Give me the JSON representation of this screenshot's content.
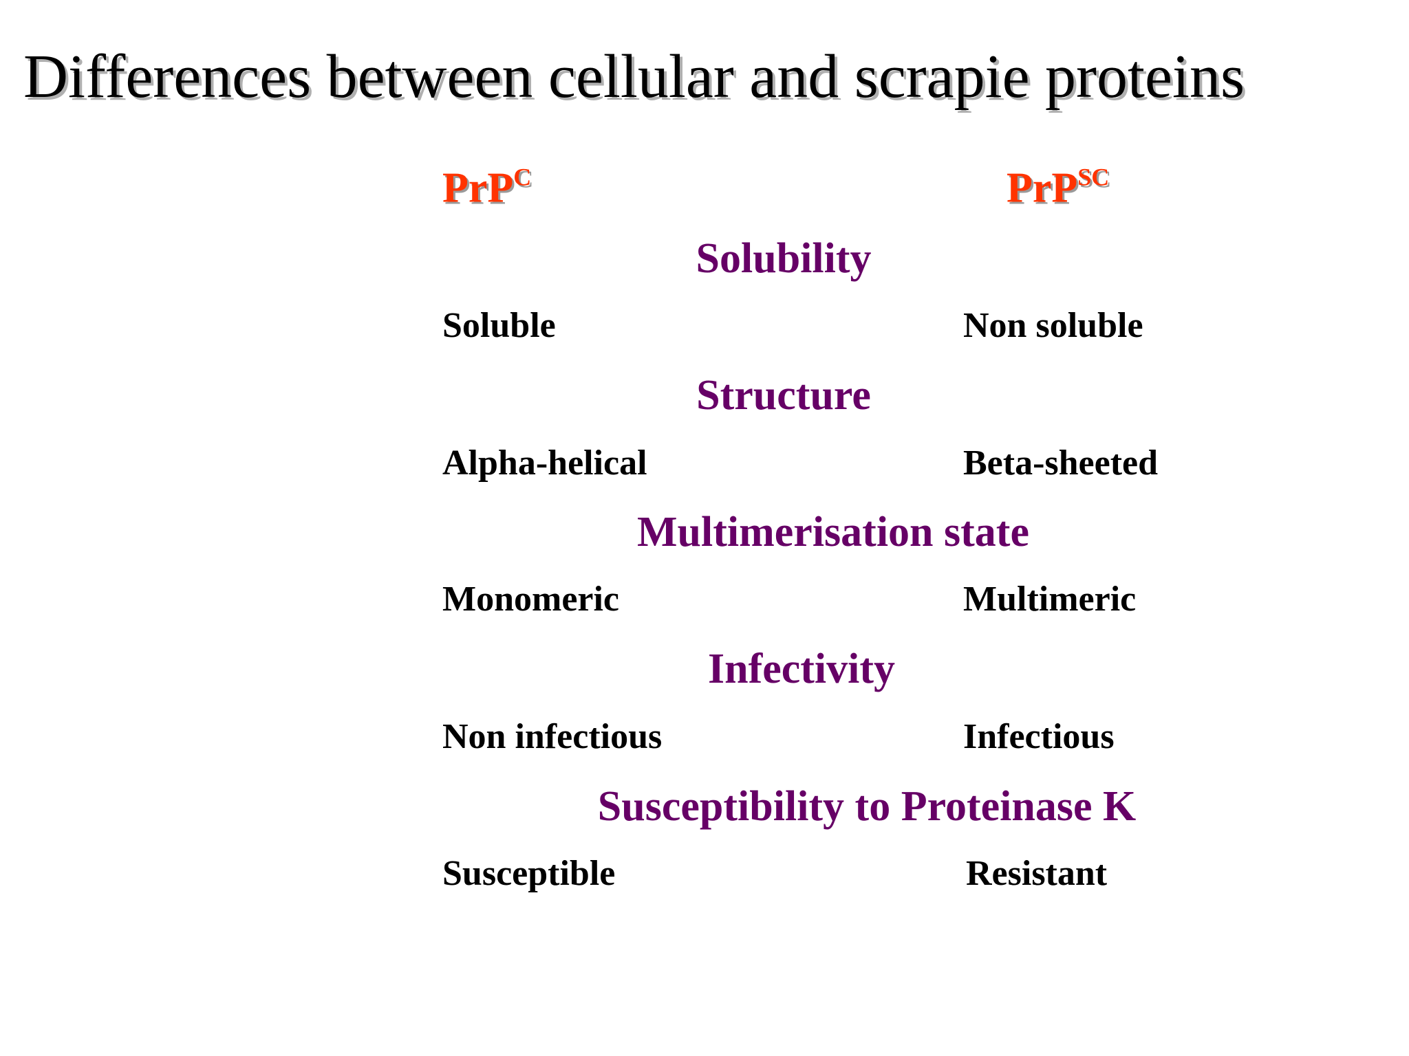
{
  "title": "Differences between cellular and scrapie proteins",
  "columns": [
    {
      "base": "PrP",
      "sup": "C"
    },
    {
      "base": "PrP",
      "sup": "SC"
    }
  ],
  "sections": [
    {
      "heading": "Solubility",
      "left": "Soluble",
      "right": "Non soluble"
    },
    {
      "heading": "Structure",
      "left": "Alpha-helical",
      "right": "Beta-sheeted"
    },
    {
      "heading": "Multimerisation state",
      "left": "Monomeric",
      "right": "Multimeric"
    },
    {
      "heading": "Infectivity",
      "left": "Non infectious",
      "right": "Infectious"
    },
    {
      "heading": "Susceptibility to Proteinase K",
      "left": "Susceptible",
      "right": "Resistant"
    }
  ]
}
